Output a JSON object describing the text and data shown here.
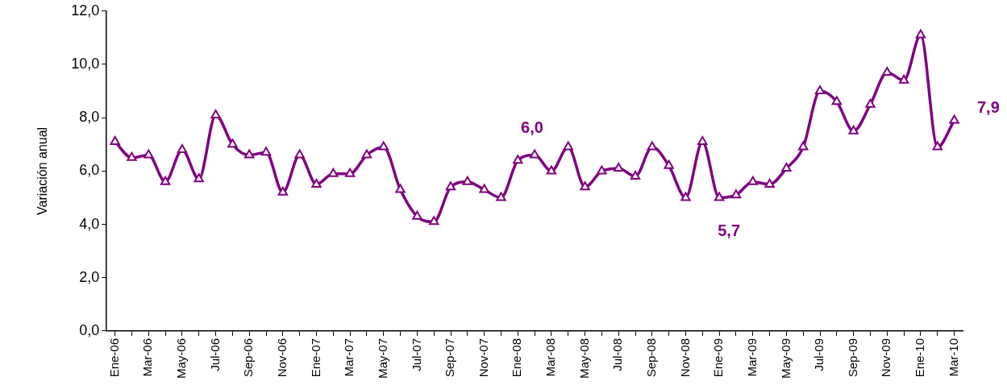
{
  "chart_data": {
    "type": "line",
    "ylabel": "Variación anual",
    "categories": [
      "Ene-06",
      null,
      "Mar-06",
      null,
      "May-06",
      null,
      "Jul-06",
      null,
      "Sep-06",
      null,
      "Nov-06",
      null,
      "Ene-07",
      null,
      "Mar-07",
      null,
      "May-07",
      null,
      "Jul-07",
      null,
      "Sep-07",
      null,
      "Nov-07",
      null,
      "Ene-08",
      null,
      "Mar-08",
      null,
      "May-08",
      null,
      "Jul-08",
      null,
      "Sep-08",
      null,
      "Nov-08",
      null,
      "Ene-09",
      null,
      "Mar-09",
      null,
      "May-09",
      null,
      "Jul-09",
      null,
      "Sep-09",
      null,
      "Nov-09",
      null,
      "Ene-10",
      null,
      "Mar-10"
    ],
    "series": [
      {
        "color": "#800080",
        "values": [
          7.1,
          6.5,
          6.6,
          5.6,
          6.8,
          5.7,
          8.1,
          7.0,
          6.6,
          6.7,
          5.2,
          6.6,
          5.5,
          5.9,
          5.9,
          6.6,
          6.9,
          5.3,
          4.3,
          4.1,
          5.4,
          5.6,
          5.3,
          5.0,
          6.4,
          6.6,
          6.0,
          6.9,
          5.4,
          6.0,
          6.1,
          5.8,
          6.9,
          6.2,
          5.0,
          7.1,
          5.0,
          5.1,
          5.6,
          5.5,
          6.1,
          6.9,
          9.0,
          8.6,
          7.5,
          8.5,
          9.7,
          9.4,
          11.1,
          6.9,
          7.9
        ]
      }
    ],
    "ylim": [
      0,
      12
    ],
    "yticks": [
      {
        "value": 0,
        "label": "0,0"
      },
      {
        "value": 2,
        "label": "2,0"
      },
      {
        "value": 4,
        "label": "4,0"
      },
      {
        "value": 6,
        "label": "6,0"
      },
      {
        "value": 8,
        "label": "8,0"
      },
      {
        "value": 10,
        "label": "10,0"
      },
      {
        "value": 12,
        "label": "12,0"
      }
    ],
    "annotations": [
      "6,0",
      "5,7",
      "7,9"
    ],
    "marker": "triangle",
    "line_style": "solid",
    "grid": false,
    "legend": false
  }
}
